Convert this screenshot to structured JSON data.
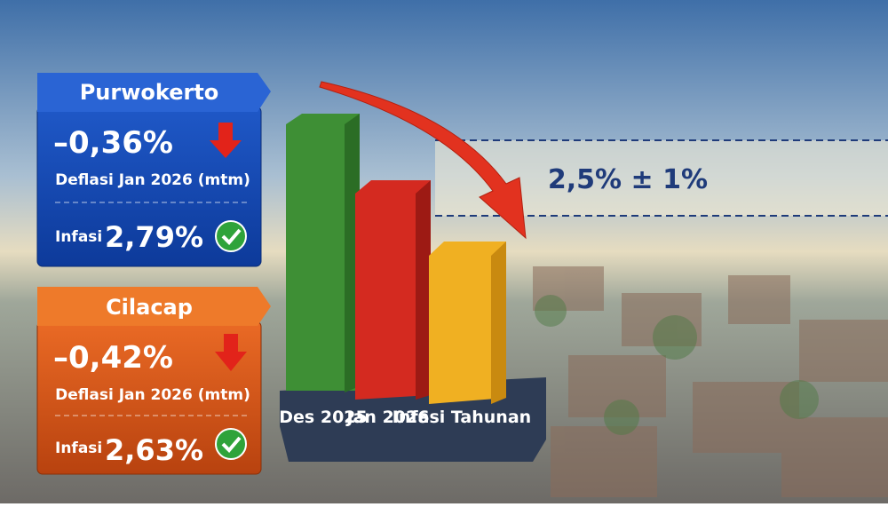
{
  "cards": [
    {
      "title": "Purwokerto",
      "change": "–0,36%",
      "change_label": "Deflasi Jan 2026 (mtm)",
      "inflation_label": "Infasi",
      "inflation_value": "2,79%"
    },
    {
      "title": "Cilacap",
      "change": "–0,42%",
      "change_label": "Deflasi Jan 2026 (mtm)",
      "inflation_label": "Infasi",
      "inflation_value": "2,63%"
    }
  ],
  "bars": {
    "labels": [
      "Des 2025",
      "Jan 2026",
      "Infasi Tahunan"
    ]
  },
  "target": {
    "label": "2,5% ± 1%"
  }
}
